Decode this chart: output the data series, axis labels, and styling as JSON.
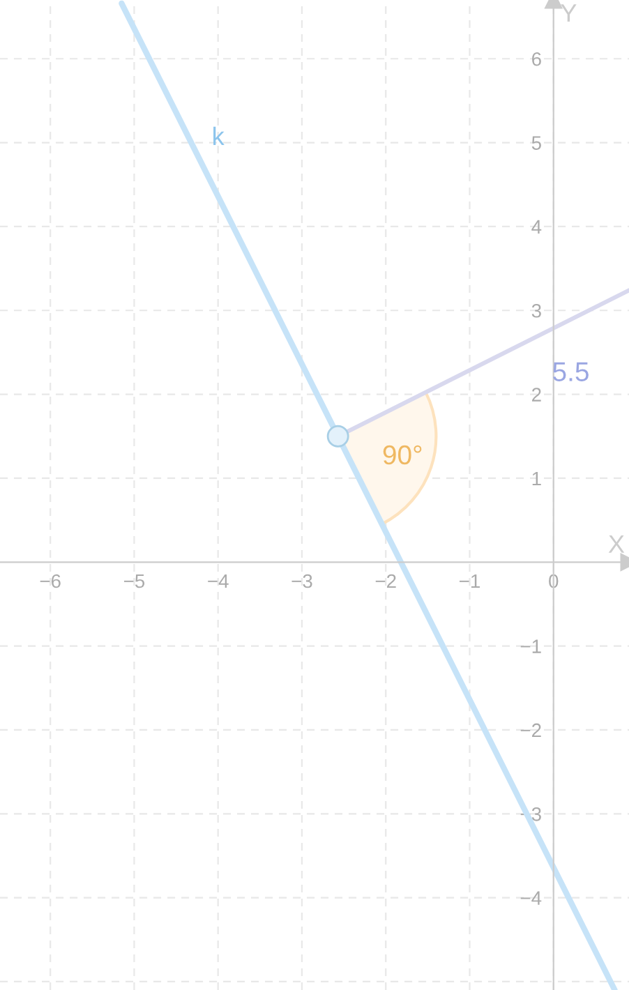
{
  "chart_data": {
    "type": "line",
    "xlabel": "X",
    "ylabel": "Y",
    "xlim": [
      -6.6,
      0.9
    ],
    "ylim": [
      -5.1,
      6.7
    ],
    "xticks": [
      -6,
      -5,
      -4,
      -3,
      -2,
      -1,
      0
    ],
    "yticks": [
      {
        "value": -5,
        "label": null
      },
      -4,
      -3,
      -2,
      -1,
      1,
      2,
      3,
      4,
      5,
      6
    ],
    "grid": true,
    "line_style": "solid",
    "series": [
      {
        "name": "k",
        "color": "#c6e3f8",
        "x": [
          -5.15,
          0.73
        ],
        "values": [
          6.66,
          -5.1
        ]
      },
      {
        "color": "#d8d8ee",
        "x": [
          -2.57,
          0.9
        ],
        "values": [
          1.5,
          3.24
        ]
      },
      {
        "type": "scatter",
        "marker": "circle",
        "color": "#e3f1fb",
        "x": [
          -2.57
        ],
        "values": [
          1.5
        ]
      }
    ],
    "annotations": [
      "90°",
      "5.5"
    ]
  }
}
